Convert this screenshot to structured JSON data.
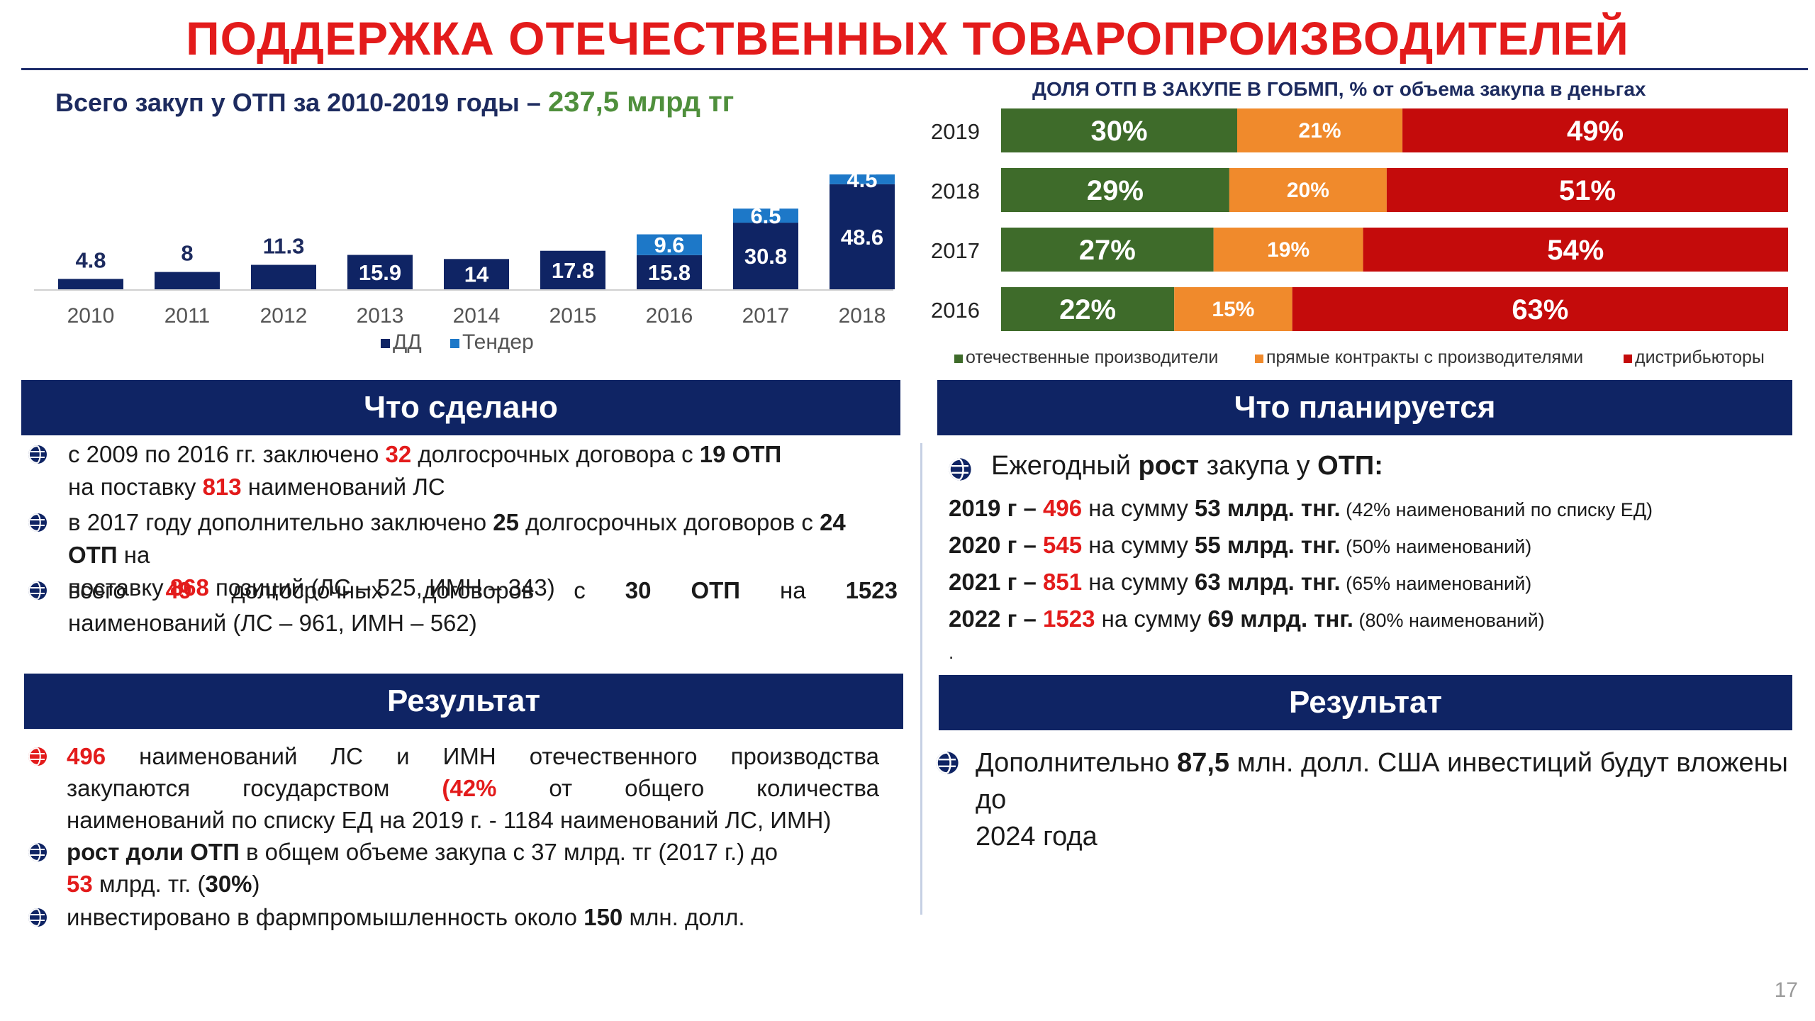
{
  "title": "ПОДДЕРЖКА ОТЕЧЕСТВЕННЫХ ТОВАРОПРОИЗВОДИТЕЛЕЙ",
  "left_chart_heading": {
    "prefix": "Всего закуп у ОТП за 2010-2019 годы – ",
    "highlight": "237,5 млрд тг"
  },
  "right_chart_heading": "ДОЛЯ ОТП В ЗАКУПЕ В ГОБМП, % от объема закупа в деньгах",
  "colors": {
    "navy": "#0f2464",
    "tender_blue": "#1d78c8",
    "green": "#3e6b2a",
    "orange": "#f08a2c",
    "red": "#c40b0b",
    "accent_red": "#e31b1b",
    "highlight_green": "#4f8f3c"
  },
  "chart_data": [
    {
      "type": "bar",
      "stacked": true,
      "categories": [
        "2010",
        "2011",
        "2012",
        "2013",
        "2014",
        "2015",
        "2016",
        "2017",
        "2018"
      ],
      "series": [
        {
          "name": "ДД",
          "values": [
            4.8,
            8,
            11.3,
            15.9,
            14,
            17.8,
            15.8,
            30.8,
            48.6
          ]
        },
        {
          "name": "Тендер",
          "values": [
            null,
            null,
            null,
            null,
            null,
            null,
            9.6,
            6.5,
            4.5
          ]
        }
      ],
      "legend": [
        "ДД",
        "Тендер"
      ],
      "legend_position": "bottom"
    },
    {
      "type": "bar",
      "orientation": "horizontal",
      "stacked_percent": true,
      "categories": [
        "2019",
        "2018",
        "2017",
        "2016"
      ],
      "series": [
        {
          "name": "отечественные производители",
          "values": [
            30,
            29,
            27,
            22
          ]
        },
        {
          "name": "прямые контракты с производителями",
          "values": [
            21,
            20,
            19,
            15
          ]
        },
        {
          "name": "дистрибьюторы",
          "values": [
            49,
            51,
            54,
            63
          ]
        }
      ],
      "legend_position": "bottom"
    }
  ],
  "done": {
    "header": "Что сделано",
    "items": [
      {
        "p1": "с 2009 по 2016 гг. заключено ",
        "n1": "32",
        "p2": " долгосрочных договора с ",
        "b1": "19  ОТП",
        "line2a": "на поставку ",
        "n2": "813",
        "line2b": " наименований  ЛС"
      },
      {
        "p1": "в 2017 году дополнительно заключено ",
        "b1": "25",
        "p2": " долгосрочных  договоров с ",
        "b2": "24 ОТП",
        "p3": " на",
        "line2a": "поставку ",
        "n1": "868",
        "line2b": " позиций (ЛС – 525, ИМН –  343)"
      },
      {
        "w1": "всего",
        "n1": "49",
        "w2": "долгосрочных",
        "w3": "договоров",
        "w4": "с",
        "b1": "30",
        "b2": "ОТП",
        "w5": "на",
        "b3": "1523",
        "line2": "наименований (ЛС – 961, ИМН – 562)"
      }
    ]
  },
  "plan": {
    "header": "Что планируется",
    "intro_a": "Ежегодный ",
    "intro_b": "рост",
    "intro_c": " закупа у ",
    "intro_d": "ОТП:",
    "rows": [
      {
        "year": "2019 г – ",
        "num": "496",
        "mid": " на сумму ",
        "sum": "53 млрд. тнг.",
        "note": " (42% наименований по списку ЕД)"
      },
      {
        "year": "2020 г – ",
        "num": "545",
        "mid": " на сумму ",
        "sum": "55 млрд. тнг.",
        "note": " (50% наименований)"
      },
      {
        "year": "2021 г – ",
        "num": "851",
        "mid": " на сумму ",
        "sum": "63 млрд. тнг.",
        "note": " (65% наименований)"
      },
      {
        "year": "2022 г – ",
        "num": "1523",
        "mid": " на сумму ",
        "sum": "69 млрд. тнг.",
        "note": " (80% наименований)"
      }
    ],
    "dot": "."
  },
  "result_left": {
    "header": "Результат",
    "item1": {
      "num": "496",
      "w1": "наименований",
      "w2": "ЛС",
      "w3": "и",
      "w4": "ИМН",
      "w5": "отечественного",
      "w6": "производства",
      "l2w1": "закупаются",
      "l2w2": "государством",
      "l2pct": "(42%",
      "l2w3": "от",
      "l2w4": "общего",
      "l2w5": "количества",
      "line3": "наименований по списку ЕД на 2019 г. - 1184 наименований ЛС,  ИМН)"
    },
    "item2": {
      "bold": "рост доли ОТП",
      "rest": " в общем объеме закупа с 37 млрд. тг (2017  г.) до",
      "num": "53",
      "tail1": " млрд. тг. (",
      "pct": "30%",
      "tail2": ")"
    },
    "item3": {
      "text": "инвестировано в фармпромышленность около ",
      "num": "150",
      "tail": " млн. долл."
    }
  },
  "result_right": {
    "header": "Результат",
    "a": "Дополнительно ",
    "b": "87,5",
    "c": " млн. долл. США инвестиций будут  вложены до",
    "d": "2024 года"
  },
  "page_number": "17"
}
